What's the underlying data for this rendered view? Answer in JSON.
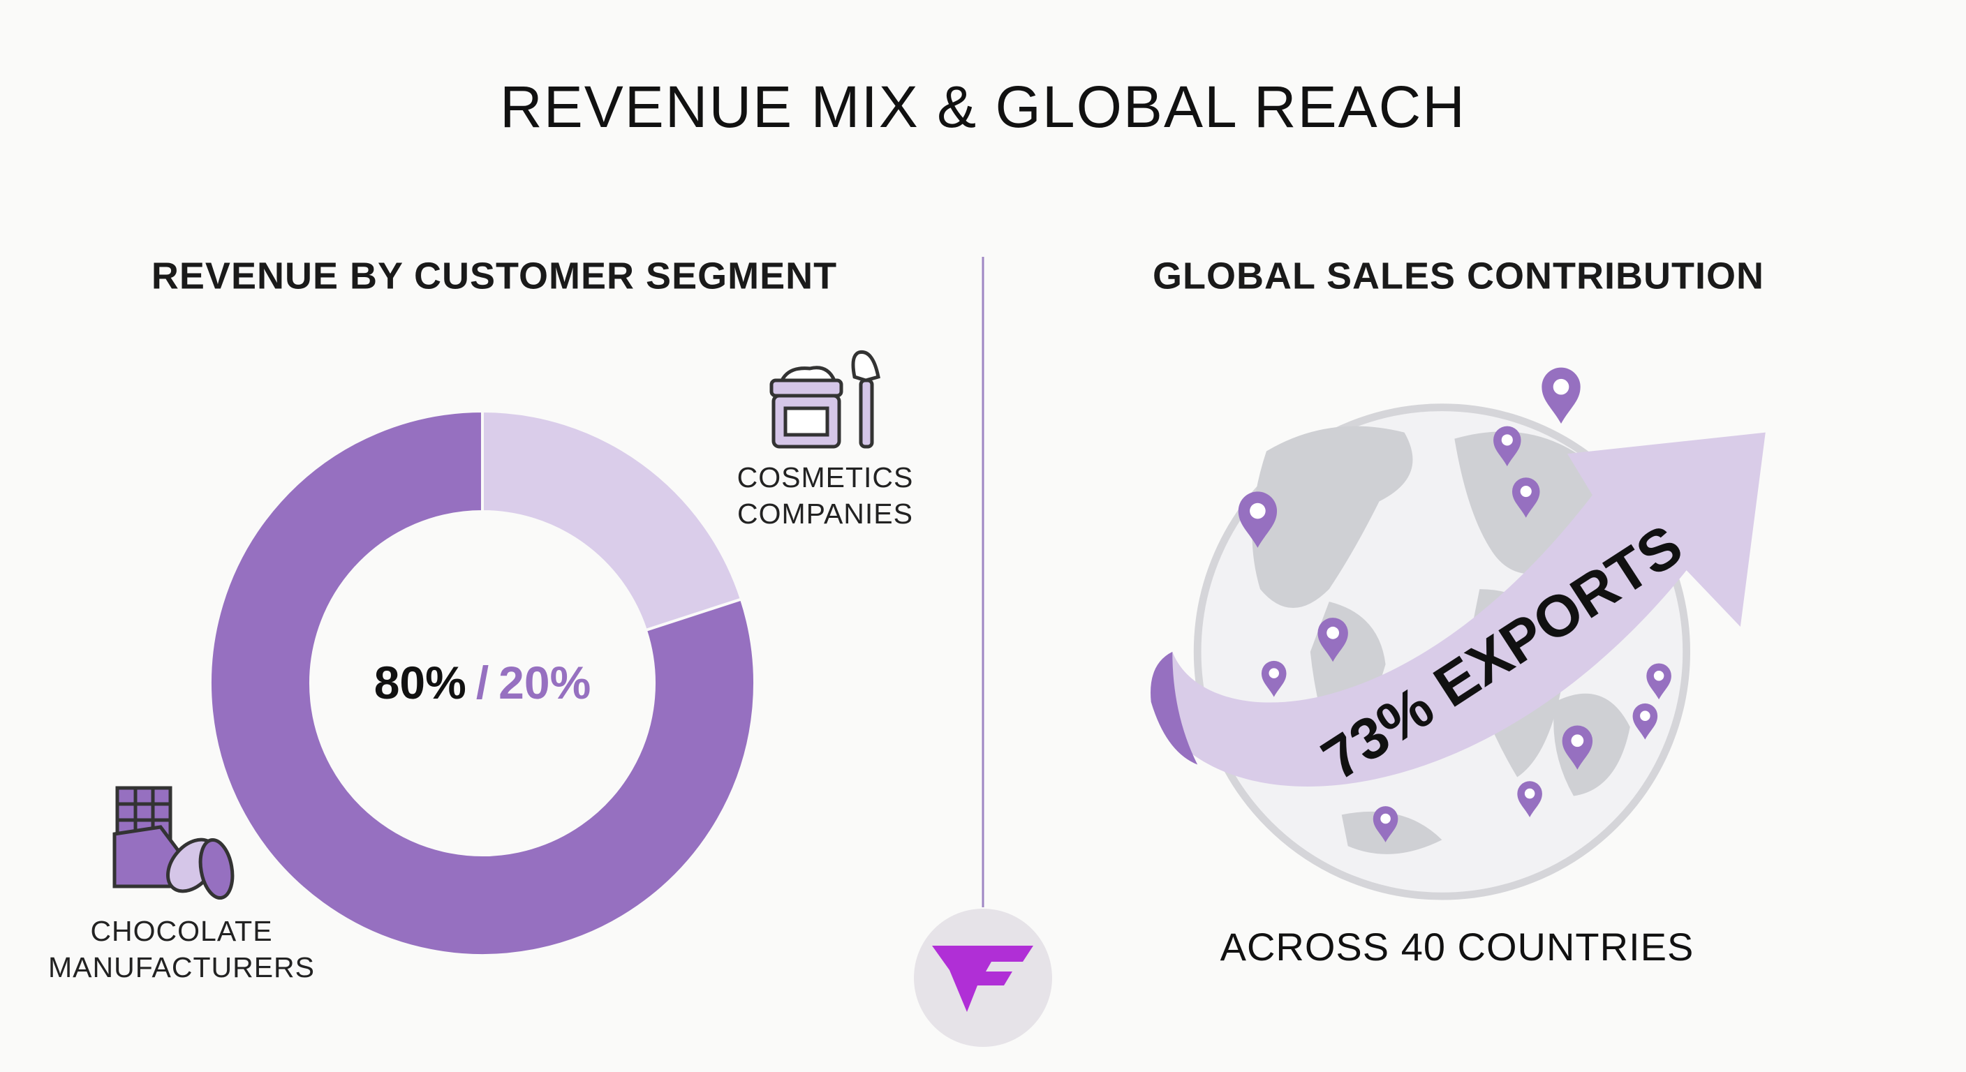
{
  "title": "REVENUE MIX & GLOBAL REACH",
  "chart_data": {
    "type": "donut",
    "title": "REVENUE BY CUSTOMER SEGMENT",
    "categories": [
      "CHOCOLATE MANUFACTURERS",
      "COSMETICS COMPANIES"
    ],
    "values": [
      80,
      20
    ],
    "value_labels": [
      "80%",
      "20%"
    ],
    "separator": "/",
    "colors": [
      "#9670c0",
      "#dacdea"
    ]
  },
  "global": {
    "title": "GLOBAL SALES CONTRIBUTION",
    "banner": "73% EXPORTS",
    "caption": "ACROSS 40 COUNTRIES"
  }
}
